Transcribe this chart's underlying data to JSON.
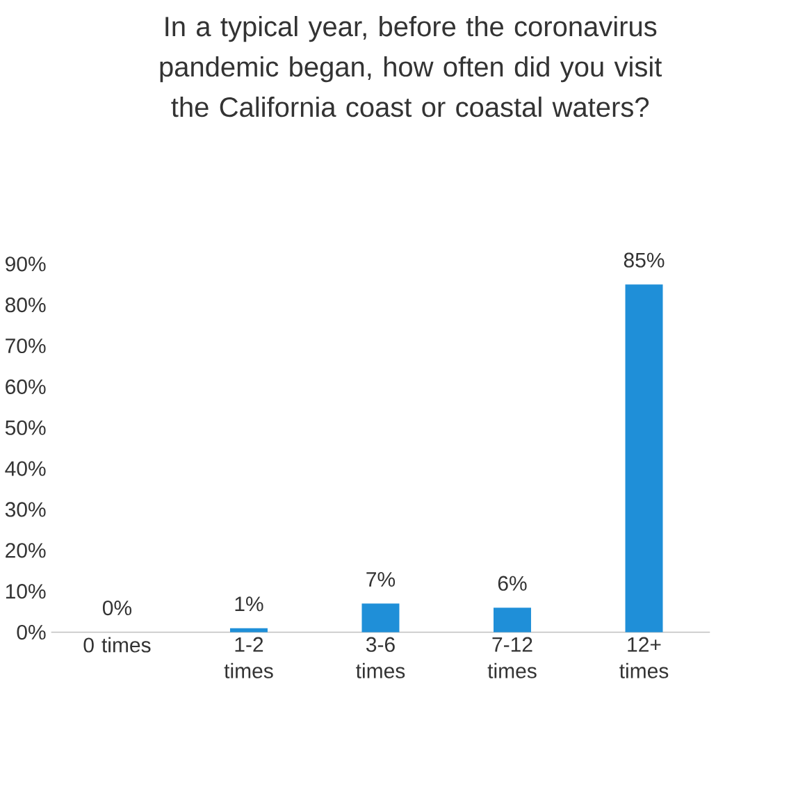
{
  "chart_data": {
    "type": "bar",
    "title": "In a typical year, before the coronavirus pandemic began, how often did you visit the California coast or coastal waters?",
    "categories": [
      "0 times",
      "1-2 times",
      "3-6 times",
      "7-12 times",
      "12+ times"
    ],
    "values": [
      0,
      1,
      7,
      6,
      85
    ],
    "value_labels": [
      "0%",
      "1%",
      "7%",
      "6%",
      "85%"
    ],
    "color": "#1f8fd8",
    "ylim": [
      0,
      90
    ],
    "yticks": [
      {
        "value": 0,
        "label": "0%"
      },
      {
        "value": 10,
        "label": "10%"
      },
      {
        "value": 20,
        "label": "20%"
      },
      {
        "value": 30,
        "label": "30%"
      },
      {
        "value": 40,
        "label": "40%"
      },
      {
        "value": 50,
        "label": "50%"
      },
      {
        "value": 60,
        "label": "60%"
      },
      {
        "value": 70,
        "label": "70%"
      },
      {
        "value": 80,
        "label": "80%"
      },
      {
        "value": 90,
        "label": "90%"
      }
    ],
    "grid": false
  }
}
